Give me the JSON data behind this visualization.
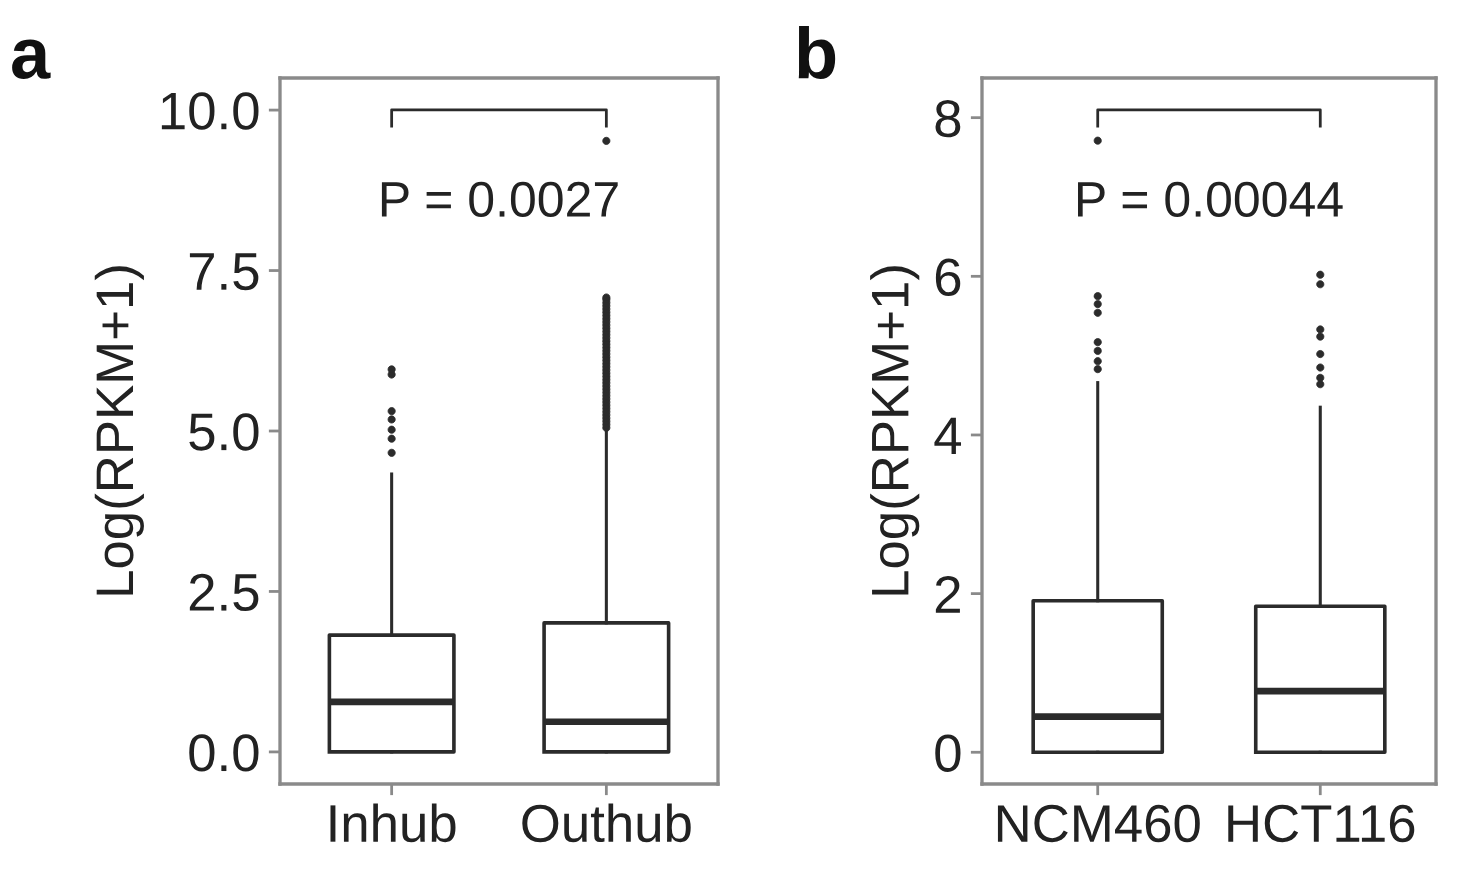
{
  "chart_data": [
    {
      "type": "box",
      "title": "a",
      "ylabel": "Log(RPKM+1)",
      "categories": [
        "Inhub",
        "Outhub"
      ],
      "boxes": [
        {
          "low": 0,
          "q1": 0,
          "median": 0.78,
          "q3": 1.82,
          "high": 4.33,
          "outliers": [
            4.66,
            4.88,
            5.02,
            5.18,
            5.31,
            5.88,
            5.96
          ]
        },
        {
          "low": 0,
          "q1": 0,
          "median": 0.47,
          "q3": 2.01,
          "high": 5.0,
          "outliers": [
            5.05,
            5.1,
            5.15,
            5.2,
            5.25,
            5.3,
            5.35,
            5.4,
            5.45,
            5.5,
            5.55,
            5.6,
            5.65,
            5.7,
            5.75,
            5.8,
            5.85,
            5.9,
            5.95,
            6.0,
            6.05,
            6.1,
            6.15,
            6.2,
            6.25,
            6.3,
            6.35,
            6.4,
            6.45,
            6.5,
            6.55,
            6.6,
            6.65,
            6.7,
            6.75,
            6.8,
            6.85,
            6.9,
            6.95,
            7.0,
            7.05,
            7.08,
            9.52
          ]
        }
      ],
      "ylim": [
        -0.5,
        10.5
      ],
      "yticks": [
        {
          "value": 0,
          "label": "0.0"
        },
        2.5,
        {
          "value": 5,
          "label": "5.0"
        },
        7.5,
        {
          "value": 10,
          "label": "10.0"
        }
      ],
      "annotations": [
        "P = 0.0027"
      ],
      "marker": "circle"
    },
    {
      "type": "box",
      "title": "b",
      "ylabel": "Log(RPKM+1)",
      "categories": [
        "NCM460",
        "HCT116"
      ],
      "boxes": [
        {
          "low": 0,
          "q1": 0,
          "median": 0.45,
          "q3": 1.91,
          "high": 4.66,
          "outliers": [
            4.83,
            4.93,
            5.06,
            5.17,
            5.54,
            5.65,
            5.75,
            7.71
          ]
        },
        {
          "low": 0,
          "q1": 0,
          "median": 0.77,
          "q3": 1.84,
          "high": 4.35,
          "outliers": [
            4.64,
            4.72,
            4.85,
            5.02,
            5.24,
            5.33,
            5.9,
            6.02
          ]
        }
      ],
      "ylim": [
        -0.4,
        8.5
      ],
      "yticks": [
        0,
        2,
        4,
        6,
        8
      ],
      "annotations": [
        "P = 0.00044"
      ],
      "marker": "circle"
    }
  ]
}
